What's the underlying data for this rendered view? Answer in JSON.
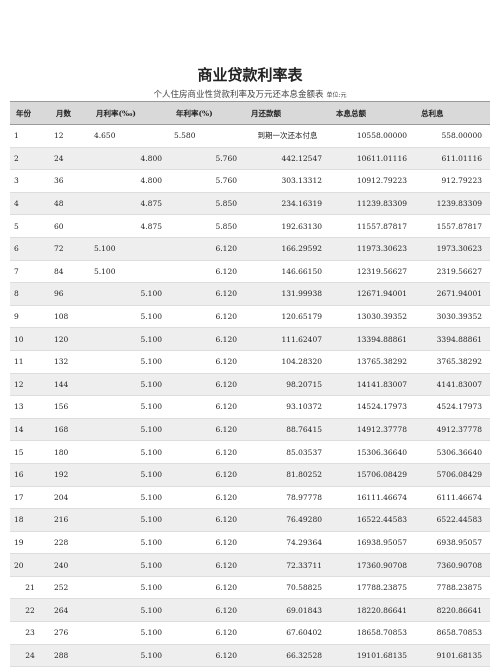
{
  "title": "商业贷款利率表",
  "subtitle": "个人住房商业性贷款利率及万元还本息金额表",
  "unit": "单位:元",
  "table": {
    "header": [
      "年份",
      "月数",
      "月利率(‰)",
      "年利率(%)",
      "月还款额",
      "本息总额",
      "总利息"
    ],
    "rows": [
      [
        "1",
        "12",
        "4.650",
        "5.580",
        "到期一次还本付息",
        "10558.00000",
        "558.00000"
      ],
      [
        "2",
        "24",
        "4.800",
        "5.760",
        "442.12547",
        "10611.01116",
        "611.01116"
      ],
      [
        "3",
        "36",
        "4.800",
        "5.760",
        "303.13312",
        "10912.79223",
        "912.79223"
      ],
      [
        "4",
        "48",
        "4.875",
        "5.850",
        "234.16319",
        "11239.83309",
        "1239.83309"
      ],
      [
        "5",
        "60",
        "4.875",
        "5.850",
        "192.63130",
        "11557.87817",
        "1557.87817"
      ],
      [
        "6",
        "72",
        "5.100",
        "6.120",
        "166.29592",
        "11973.30623",
        "1973.30623"
      ],
      [
        "7",
        "84",
        "5.100",
        "6.120",
        "146.66150",
        "12319.56627",
        "2319.56627"
      ],
      [
        "8",
        "96",
        "5.100",
        "6.120",
        "131.99938",
        "12671.94001",
        "2671.94001"
      ],
      [
        "9",
        "108",
        "5.100",
        "6.120",
        "120.65179",
        "13030.39352",
        "3030.39352"
      ],
      [
        "10",
        "120",
        "5.100",
        "6.120",
        "111.62407",
        "13394.88861",
        "3394.88861"
      ],
      [
        "11",
        "132",
        "5.100",
        "6.120",
        "104.28320",
        "13765.38292",
        "3765.38292"
      ],
      [
        "12",
        "144",
        "5.100",
        "6.120",
        "98.20715",
        "14141.83007",
        "4141.83007"
      ],
      [
        "13",
        "156",
        "5.100",
        "6.120",
        "93.10372",
        "14524.17973",
        "4524.17973"
      ],
      [
        "14",
        "168",
        "5.100",
        "6.120",
        "88.76415",
        "14912.37778",
        "4912.37778"
      ],
      [
        "15",
        "180",
        "5.100",
        "6.120",
        "85.03537",
        "15306.36640",
        "5306.36640"
      ],
      [
        "16",
        "192",
        "5.100",
        "6.120",
        "81.80252",
        "15706.08429",
        "5706.08429"
      ],
      [
        "17",
        "204",
        "5.100",
        "6.120",
        "78.97778",
        "16111.46674",
        "6111.46674"
      ],
      [
        "18",
        "216",
        "5.100",
        "6.120",
        "76.49280",
        "16522.44583",
        "6522.44583"
      ],
      [
        "19",
        "228",
        "5.100",
        "6.120",
        "74.29364",
        "16938.95057",
        "6938.95057"
      ],
      [
        "20",
        "240",
        "5.100",
        "6.120",
        "72.33711",
        "17360.90708",
        "7360.90708"
      ],
      [
        "21",
        "252",
        "5.100",
        "6.120",
        "70.58825",
        "17788.23875",
        "7788.23875"
      ],
      [
        "22",
        "264",
        "5.100",
        "6.120",
        "69.01843",
        "18220.86641",
        "8220.86641"
      ],
      [
        "23",
        "276",
        "5.100",
        "6.120",
        "67.60402",
        "18658.70853",
        "8658.70853"
      ],
      [
        "24",
        "288",
        "5.100",
        "6.120",
        "66.32528",
        "19101.68135",
        "9101.68135"
      ]
    ]
  }
}
